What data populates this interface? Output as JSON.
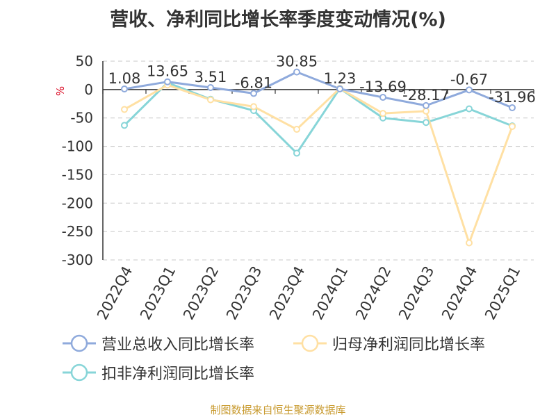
{
  "title": "营收、净利同比增长率季度变动情况(%)",
  "source": "制图数据来自恒生聚源数据库",
  "chart_data": {
    "type": "line",
    "ylabel": "%",
    "ylim": [
      -300,
      50
    ],
    "yticks": [
      50,
      0,
      -50,
      -100,
      -150,
      -200,
      -250,
      -300
    ],
    "grid": true,
    "legend_position": "bottom",
    "categories": [
      "2022Q4",
      "2023Q1",
      "2023Q2",
      "2023Q3",
      "2023Q4",
      "2024Q1",
      "2024Q2",
      "2024Q3",
      "2024Q4",
      "2025Q1"
    ],
    "series": [
      {
        "name": "营业总收入同比增长率",
        "color": "#8faadc",
        "values": [
          1.08,
          13.65,
          3.51,
          -6.81,
          30.85,
          1.23,
          -13.69,
          -28.17,
          -0.67,
          -31.96
        ],
        "labels": [
          "1.08",
          "13.65",
          "3.51",
          "-6.81",
          "30.85",
          "1.23",
          "-13.69",
          "-28.17",
          "-0.67",
          "-31.96"
        ]
      },
      {
        "name": "归母净利润同比增长率",
        "color": "#ffe0a3",
        "values": [
          -35,
          8,
          -18,
          -30,
          -70,
          2,
          -42,
          -38,
          -270,
          -65
        ]
      },
      {
        "name": "扣非净利润同比增长率",
        "color": "#87d5d8",
        "values": [
          -63,
          12,
          -17,
          -37,
          -112,
          2,
          -50,
          -58,
          -34,
          -64
        ]
      }
    ]
  },
  "colors": {
    "title": "#333333",
    "source": "#c89a2e",
    "ylabel": "#d9001b",
    "grid": "#c8c8c8",
    "axis": "#333333"
  }
}
